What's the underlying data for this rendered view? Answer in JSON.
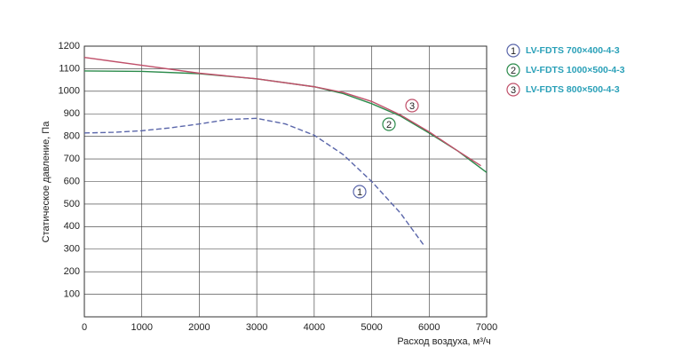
{
  "chart_data": {
    "type": "line",
    "x_label": "Расход воздуха, м³/ч",
    "y_label": "Статическое давление, Па",
    "xlim": [
      0,
      7000
    ],
    "xticks": [
      0,
      1000,
      2000,
      3000,
      4000,
      5000,
      6000,
      7000
    ],
    "ylim": [
      0,
      1200
    ],
    "yticks": [
      100,
      200,
      300,
      400,
      500,
      600,
      700,
      800,
      900,
      1000,
      1100,
      1200
    ],
    "grid": true,
    "series": [
      {
        "name": "LV-FDTS 700×400-4-3",
        "label": "1",
        "color": "#5a66aa",
        "dashed": true,
        "x": [
          0,
          500,
          1000,
          1500,
          2000,
          2500,
          3000,
          3500,
          4000,
          4500,
          5000,
          5500,
          5900
        ],
        "values": [
          815,
          818,
          825,
          838,
          855,
          875,
          880,
          855,
          805,
          720,
          600,
          460,
          320
        ]
      },
      {
        "name": "LV-FDTS 1000×500-4-3",
        "label": "2",
        "color": "#2a8a4a",
        "dashed": false,
        "x": [
          0,
          1000,
          2000,
          3000,
          4000,
          4500,
          5000,
          5500,
          6000,
          6500,
          7000
        ],
        "values": [
          1090,
          1088,
          1078,
          1055,
          1020,
          990,
          945,
          890,
          815,
          735,
          640
        ]
      },
      {
        "name": "LV-FDTS 800×500-4-3",
        "label": "3",
        "color": "#c0506a",
        "dashed": false,
        "x": [
          0,
          1000,
          2000,
          3000,
          4000,
          4500,
          5000,
          5500,
          6000,
          6500,
          6900
        ],
        "values": [
          1150,
          1115,
          1080,
          1055,
          1020,
          995,
          955,
          895,
          820,
          735,
          670
        ]
      }
    ]
  }
}
